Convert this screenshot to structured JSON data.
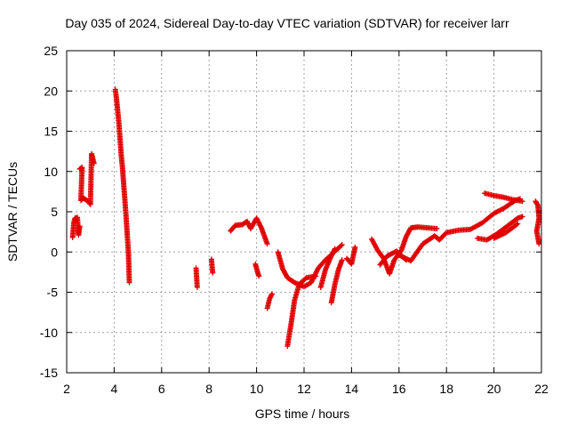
{
  "chart_data": {
    "type": "scatter",
    "title": "Day 035 of 2024, Sidereal Day-to-day VTEC variation (SDTVAR) for receiver larr",
    "xlabel": "GPS time / hours",
    "ylabel": "SDTVAR / TECUs",
    "xlim": [
      2,
      22
    ],
    "ylim": [
      -15,
      25
    ],
    "xticks": [
      2,
      4,
      6,
      8,
      10,
      12,
      14,
      16,
      18,
      20,
      22
    ],
    "yticks": [
      -15,
      -10,
      -5,
      0,
      5,
      10,
      15,
      20,
      25
    ],
    "grid": true,
    "marker": "+",
    "color": "#e00000",
    "series": [
      {
        "name": "SDTVAR",
        "segments": [
          [
            [
              2.25,
              1.8
            ],
            [
              2.3,
              3.6
            ],
            [
              2.35,
              4.2
            ],
            [
              2.45,
              4.3
            ],
            [
              2.5,
              2.1
            ],
            [
              2.55,
              3.2
            ]
          ],
          [
            [
              2.55,
              10.3
            ],
            [
              2.65,
              10.5
            ],
            [
              2.6,
              6.4
            ],
            [
              2.7,
              6.7
            ],
            [
              2.8,
              6.5
            ],
            [
              2.9,
              6.3
            ],
            [
              3.0,
              5.9
            ],
            [
              3.05,
              12.2
            ],
            [
              3.1,
              11.6
            ],
            [
              3.15,
              11.0
            ]
          ],
          [
            [
              4.05,
              20.2
            ],
            [
              4.1,
              19.0
            ],
            [
              4.15,
              17.5
            ],
            [
              4.2,
              16.0
            ],
            [
              4.25,
              14.0
            ],
            [
              4.3,
              12.0
            ],
            [
              4.35,
              10.5
            ],
            [
              4.4,
              8.5
            ],
            [
              4.45,
              6.5
            ],
            [
              4.5,
              4.5
            ],
            [
              4.55,
              2.2
            ],
            [
              4.6,
              0.0
            ],
            [
              4.62,
              -1.8
            ],
            [
              4.64,
              -3.8
            ]
          ],
          [
            [
              7.45,
              -2.0
            ],
            [
              7.5,
              -4.4
            ]
          ],
          [
            [
              8.1,
              -0.9
            ],
            [
              8.15,
              -2.6
            ]
          ],
          [
            [
              8.9,
              2.6
            ],
            [
              9.1,
              3.3
            ],
            [
              9.4,
              3.4
            ],
            [
              9.6,
              3.8
            ],
            [
              9.75,
              2.9
            ],
            [
              10.0,
              4.2
            ],
            [
              10.2,
              3.0
            ],
            [
              10.45,
              1.0
            ]
          ],
          [
            [
              9.95,
              -1.5
            ],
            [
              10.05,
              -2.6
            ],
            [
              10.1,
              -3.0
            ]
          ],
          [
            [
              10.45,
              -7.0
            ],
            [
              10.55,
              -5.8
            ],
            [
              10.65,
              -5.2
            ]
          ],
          [
            [
              10.9,
              0.0
            ],
            [
              11.1,
              -2.1
            ],
            [
              11.3,
              -3.2
            ],
            [
              11.6,
              -3.8
            ],
            [
              12.0,
              -4.3
            ],
            [
              12.3,
              -3.8
            ],
            [
              12.6,
              -2.0
            ],
            [
              12.9,
              -1.0
            ],
            [
              13.2,
              -0.2
            ],
            [
              13.6,
              0.9
            ]
          ],
          [
            [
              11.3,
              -11.7
            ],
            [
              11.45,
              -9.0
            ],
            [
              11.6,
              -6.0
            ],
            [
              11.8,
              -4.0
            ],
            [
              12.1,
              -3.2
            ],
            [
              12.5,
              -3.0
            ]
          ],
          [
            [
              12.7,
              -4.4
            ],
            [
              12.9,
              -2.2
            ],
            [
              13.1,
              -0.8
            ],
            [
              13.3,
              0.4
            ]
          ],
          [
            [
              13.15,
              -6.3
            ],
            [
              13.3,
              -4.0
            ],
            [
              13.45,
              -2.2
            ],
            [
              13.6,
              -1.0
            ]
          ],
          [
            [
              13.8,
              -0.8
            ],
            [
              14.0,
              -1.5
            ],
            [
              14.15,
              0.6
            ]
          ],
          [
            [
              14.85,
              1.6
            ],
            [
              15.1,
              0.2
            ],
            [
              15.35,
              -0.8
            ],
            [
              15.6,
              -2.7
            ],
            [
              15.8,
              -1.0
            ],
            [
              16.1,
              0.2
            ],
            [
              16.3,
              1.9
            ],
            [
              16.5,
              3.0
            ],
            [
              16.8,
              3.1
            ],
            [
              17.2,
              3.0
            ],
            [
              17.6,
              2.9
            ]
          ],
          [
            [
              15.2,
              -1.6
            ],
            [
              15.5,
              -0.5
            ],
            [
              15.9,
              0.1
            ],
            [
              16.3,
              -1.0
            ]
          ],
          [
            [
              16.0,
              -0.4
            ],
            [
              16.5,
              -1.1
            ],
            [
              17.0,
              1.0
            ],
            [
              17.5,
              2.0
            ],
            [
              17.7,
              1.5
            ],
            [
              18.0,
              2.4
            ],
            [
              18.5,
              2.7
            ],
            [
              19.0,
              2.8
            ],
            [
              19.5,
              3.6
            ],
            [
              20.0,
              4.8
            ],
            [
              20.4,
              5.4
            ],
            [
              20.9,
              6.4
            ],
            [
              21.1,
              6.6
            ]
          ],
          [
            [
              19.6,
              7.3
            ],
            [
              20.0,
              7.0
            ],
            [
              20.4,
              6.8
            ],
            [
              20.8,
              6.5
            ],
            [
              21.2,
              6.3
            ]
          ],
          [
            [
              19.3,
              1.7
            ],
            [
              19.7,
              1.5
            ],
            [
              20.1,
              2.2
            ],
            [
              20.6,
              3.3
            ],
            [
              21.0,
              4.2
            ],
            [
              21.2,
              4.4
            ]
          ],
          [
            [
              20.0,
              1.7
            ],
            [
              20.5,
              2.4
            ],
            [
              21.0,
              3.5
            ]
          ],
          [
            [
              21.75,
              6.3
            ],
            [
              21.85,
              5.8
            ],
            [
              21.9,
              4.2
            ],
            [
              21.8,
              2.6
            ],
            [
              21.9,
              1.0
            ]
          ]
        ]
      }
    ]
  }
}
